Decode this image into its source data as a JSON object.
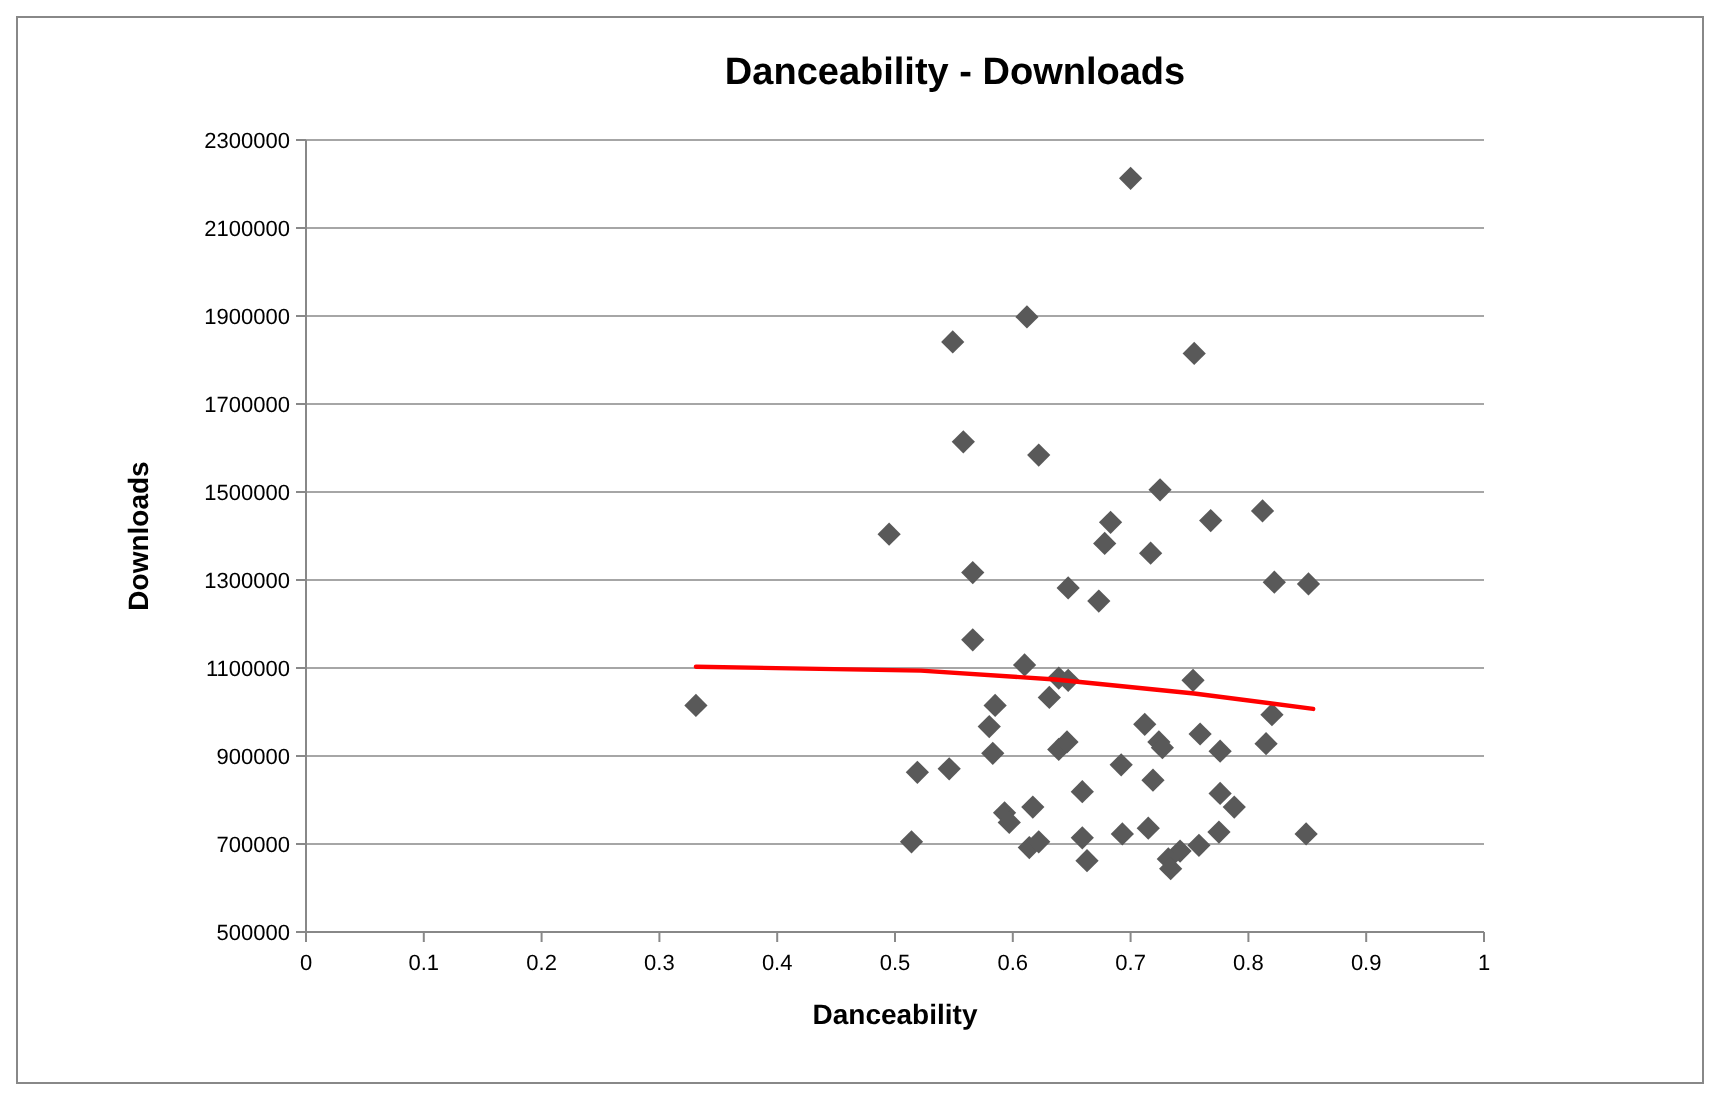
{
  "chart_data": {
    "type": "scatter",
    "title": "Danceability - Downloads",
    "xlabel": "Danceability",
    "ylabel": "Downloads",
    "xlim": [
      0,
      1
    ],
    "xticks": [
      0,
      0.1,
      0.2,
      0.3,
      0.4,
      0.5,
      0.6,
      0.7,
      0.8,
      0.9,
      1
    ],
    "ylim": [
      500000,
      2300000
    ],
    "yticks": [
      500000,
      700000,
      900000,
      1100000,
      1300000,
      1500000,
      1700000,
      1900000,
      2100000,
      2300000
    ],
    "grid": "y",
    "marker": "diamond",
    "series": [
      {
        "color": "#595959",
        "x": [
          0.331,
          0.549,
          0.612,
          0.558,
          0.622,
          0.495,
          0.566,
          0.647,
          0.566,
          0.61,
          0.639,
          0.647,
          0.585,
          0.631,
          0.58,
          0.583,
          0.639,
          0.646,
          0.519,
          0.546,
          0.659,
          0.593,
          0.597,
          0.617,
          0.514,
          0.614,
          0.622,
          0.659,
          0.663,
          0.7,
          0.754,
          0.725,
          0.683,
          0.678,
          0.768,
          0.717,
          0.812,
          0.822,
          0.851,
          0.673,
          0.753,
          0.712,
          0.724,
          0.727,
          0.759,
          0.776,
          0.82,
          0.815,
          0.692,
          0.719,
          0.776,
          0.788,
          0.693,
          0.715,
          0.775,
          0.849,
          0.758,
          0.742,
          0.732,
          0.734
        ],
        "values": [
          1015000,
          1841000,
          1898000,
          1614000,
          1584000,
          1404000,
          1317000,
          1282000,
          1164000,
          1107000,
          1077000,
          1072000,
          1015000,
          1033000,
          967000,
          906000,
          915000,
          932000,
          863000,
          871000,
          819000,
          771000,
          749000,
          784000,
          705000,
          692000,
          705000,
          714000,
          662000,
          2213000,
          1815000,
          1505000,
          1431000,
          1383000,
          1435000,
          1361000,
          1457000,
          1295000,
          1291000,
          1252000,
          1072000,
          972000,
          932000,
          919000,
          950000,
          911000,
          994000,
          928000,
          880000,
          845000,
          815000,
          784000,
          723000,
          736000,
          727000,
          723000,
          697000,
          684000,
          666000,
          644000
        ]
      },
      {
        "type": "line",
        "color": "#ff0000",
        "marker": "none",
        "line_style": "solid",
        "x": [
          0.331,
          0.522,
          0.636,
          0.754,
          0.855
        ],
        "values": [
          1103000,
          1094000,
          1074000,
          1042000,
          1007000
        ]
      }
    ]
  }
}
